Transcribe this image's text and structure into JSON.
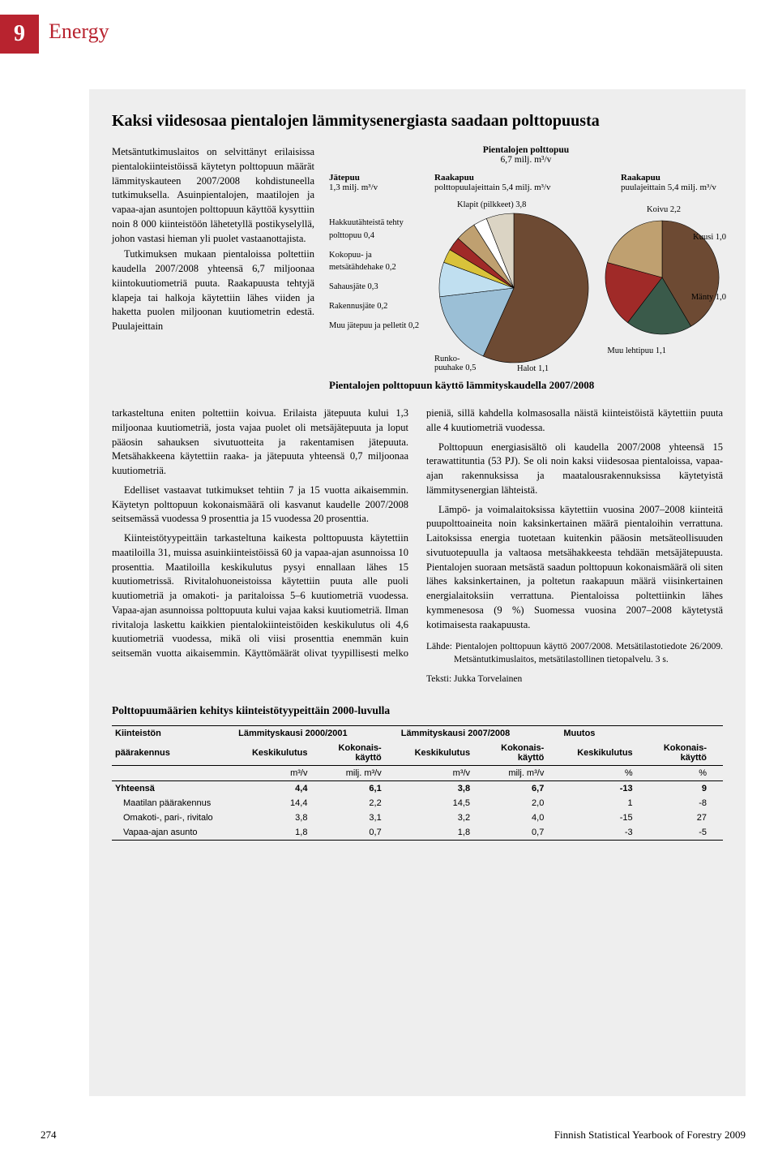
{
  "chapter": {
    "number": "9",
    "title": "Energy"
  },
  "article_title": "Kaksi viidesosaa pientalojen lämmitysenergiasta saadaan polttopuusta",
  "intro": "Metsäntutkimuslaitos on selvittänyt erilaisissa pientalokiinteistöissä käytetyn polttopuun määrät lämmityskauteen 2007/2008 kohdistuneella tutkimuksella. Asuinpientalojen, maatilojen ja vapaa-ajan asuntojen polttopuun käyttöä kysyttiin noin 8 000 kiinteistöön lähetetyllä postikyselyllä, johon vastasi hieman yli puolet vastaanottajista.",
  "intro2": "Tutkimuksen mukaan pientaloissa poltettiin kaudella 2007/2008 yhteensä 6,7 miljoonaa kiintokuutiometriä puuta. Raakapuusta tehtyjä klapeja tai halkoja käytettiin lähes viiden ja haketta puolen miljoonan kuutiometrin edestä. Puulajeittain",
  "body_continue": "tarkasteltuna eniten poltettiin koivua. Erilaista jätepuuta kului 1,3 miljoonaa kuutiometriä, josta vajaa puolet oli metsäjätepuuta ja loput pääosin sahauksen sivutuotteita ja rakentamisen jätepuuta. Metsähakkeena käytettiin raaka- ja jätepuuta yhteensä 0,7 miljoonaa kuutiometriä.",
  "body_p2": "Edelliset vastaavat tutkimukset tehtiin 7 ja 15 vuotta aikaisemmin. Käytetyn polttopuun kokonaismäärä oli kasvanut kaudelle 2007/2008 seitsemässä vuodessa 9 prosenttia ja 15 vuodessa 20 prosenttia.",
  "body_p3": "Kiinteistötyypeittäin tarkasteltuna kaikesta polttopuusta käytettiin maatiloilla 31, muissa asuinkiinteistöissä 60 ja vapaa-ajan asunnoissa 10 prosenttia. Maatiloilla keskikulutus pysyi ennallaan lähes 15 kuutiometrissä. Rivitalohuoneistoissa käytettiin puuta alle puoli kuutiometriä ja omakoti- ja paritaloissa 5–6 kuutiometriä vuodessa. Vapaa-ajan asunnoissa polttopuuta kului vajaa kaksi kuutiometriä. Ilman rivitaloja laskettu kaikkien pientalokiinteistöiden keskikulutus oli 4,6 kuutiometriä vuodessa, mikä oli viisi prosenttia enemmän kuin seitsemän vuotta aikaisemmin. Käyttömäärät olivat tyypillisesti melko pieniä, sillä kahdella kolmasosalla näistä kiinteistöistä käytettiin puuta alle 4 kuutiometriä vuodessa.",
  "body_p4": "Polttopuun energiasisältö oli kaudella 2007/2008 yhteensä 15 terawattituntia (53 PJ). Se oli noin kaksi viidesosaa pientaloissa, vapaa-ajan rakennuksissa ja maatalousrakennuksissa käytetyistä lämmitysenergian lähteistä.",
  "body_p5": "Lämpö- ja voimalaitoksissa käytettiin vuosina 2007–2008 kiinteitä puupolttoaineita noin kaksinkertainen määrä pientaloihin verrattuna. Laitoksissa energia tuotetaan kuitenkin pääosin metsäteollisuuden sivutuotepuulla ja valtaosa metsähakkeesta tehdään metsäjätepuusta. Pientalojen suoraan metsästä saadun polttopuun kokonaismäärä oli siten lähes kaksinkertainen, ja poltetun raakapuun määrä viisinkertainen energialaitoksiin verrattuna. Pientaloissa poltettiinkin lähes kymmenesosa (9 %) Suomessa vuosina 2007–2008 käytetystä kotimaisesta raakapuusta.",
  "source1": "Lähde: Pientalojen polttopuun käyttö 2007/2008. Metsätilastotiedote 26/2009. Metsäntutkimuslaitos, metsätilastollinen tietopalvelu. 3 s.",
  "source2": "Teksti: Jukka Torvelainen",
  "chart": {
    "title": "Pientalojen polttopuu",
    "subtitle_unit": "6,7 milj. m³/v",
    "col1_head": "Jätepuu",
    "col1_sub": "1,3 milj. m³/v",
    "col2_head": "Raakapuu",
    "col2_sub": "polttopuulajeittain 5,4 milj. m³/v",
    "col3_head": "Raakapuu",
    "col3_sub": "puulajeittain 5,4 milj. m³/v",
    "left_legend": [
      "Hakkuutähteistä tehty polttopuu 0,4",
      "Kokopuu- ja metsätähdehake 0,2",
      "Sahausjäte 0,3",
      "Rakennusjäte 0,2",
      "Muu jätepuu ja pelletit 0,2"
    ],
    "left_pie_labels": {
      "klapit": "Klapit (pilkkeet) 3,8",
      "runko": "Runko-\npuuhake 0,5",
      "halot": "Halot 1,1"
    },
    "right_pie_labels": {
      "koivu": "Koivu 2,2",
      "kuusi": "Kuusi 1,0",
      "manty": "Mänty 1,0",
      "muu": "Muu lehtipuu 1,1"
    },
    "figure_caption": "Pientalojen polttopuun käyttö lämmityskaudella 2007/2008",
    "left_pie": {
      "colors": {
        "klapit": "#6d4a33",
        "hakkuu": "#dbd4c4",
        "kokopuu": "#ffffff",
        "sahaus": "#bfa070",
        "rakennus": "#a02a28",
        "muu": "#d9c23a",
        "runko": "#c0dff0",
        "halot": "#9bbfd6"
      },
      "values": {
        "klapit": 3.8,
        "hakkuu": 0.4,
        "kokopuu": 0.2,
        "sahaus": 0.3,
        "rakennus": 0.2,
        "muu": 0.2,
        "runko": 0.5,
        "halot": 1.1
      }
    },
    "right_pie": {
      "colors": {
        "koivu": "#6d4a33",
        "kuusi": "#3a5a4a",
        "manty": "#a02a28",
        "muu": "#bfa070"
      },
      "values": {
        "koivu": 2.2,
        "kuusi": 1.0,
        "manty": 1.0,
        "muu": 1.1
      }
    }
  },
  "table": {
    "title": "Polttopuumäärien kehitys kiinteistötyypeittäin 2000-luvulla",
    "header1": [
      "Kiinteistön",
      "Lämmityskausi 2000/2001",
      "",
      "Lämmityskausi 2007/2008",
      "",
      "Muutos",
      ""
    ],
    "header2": [
      "päärakennus",
      "Keskikulutus",
      "Kokonais-käyttö",
      "Keskikulutus",
      "Kokonais-käyttö",
      "Keskikulutus",
      "Kokonais-käyttö"
    ],
    "units": [
      "",
      "m³/v",
      "milj. m³/v",
      "m³/v",
      "milj. m³/v",
      "%",
      "%"
    ],
    "rows": [
      {
        "label": "Yhteensä",
        "bold": true,
        "v": [
          "4,4",
          "6,1",
          "3,8",
          "6,7",
          "-13",
          "9"
        ]
      },
      {
        "label": "Maatilan päärakennus",
        "indent": true,
        "v": [
          "14,4",
          "2,2",
          "14,5",
          "2,0",
          "1",
          "-8"
        ]
      },
      {
        "label": "Omakoti-, pari-, rivitalo",
        "indent": true,
        "v": [
          "3,8",
          "3,1",
          "3,2",
          "4,0",
          "-15",
          "27"
        ]
      },
      {
        "label": "Vapaa-ajan asunto",
        "indent": true,
        "v": [
          "1,8",
          "0,7",
          "1,8",
          "0,7",
          "-3",
          "-5"
        ]
      }
    ]
  },
  "footer": {
    "page": "274",
    "pub": "Finnish Statistical Yearbook of Forestry 2009"
  }
}
